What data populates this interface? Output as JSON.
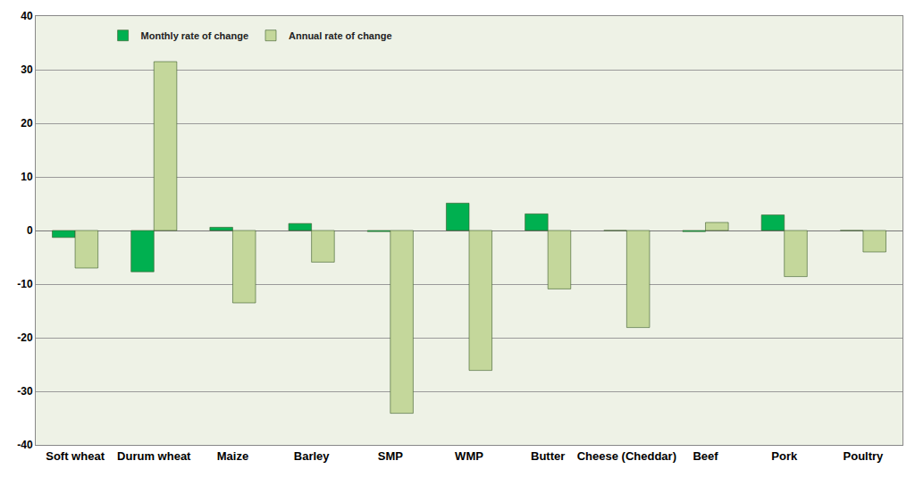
{
  "chart_data": {
    "type": "bar",
    "categories": [
      "Soft wheat",
      "Durum wheat",
      "Maize",
      "Barley",
      "SMP",
      "WMP",
      "Butter",
      "Cheese (Cheddar)",
      "Beef",
      "Pork",
      "Poultry"
    ],
    "series": [
      {
        "name": "Monthly rate of change",
        "color": "#00b050",
        "values": [
          -1.3,
          -7.7,
          0.6,
          1.3,
          -0.2,
          5.1,
          3.1,
          0,
          -0.2,
          2.9,
          0
        ]
      },
      {
        "name": "Annual rate of change",
        "color": "#c4d79b",
        "values": [
          -7.0,
          31.5,
          -13.5,
          -5.9,
          -34.1,
          -26.1,
          -10.9,
          -18.1,
          1.5,
          -8.6,
          -4.0
        ]
      }
    ],
    "ylim": [
      -40,
      40
    ],
    "yticks": [
      -40,
      -30,
      -20,
      -10,
      0,
      10,
      20,
      30,
      40
    ],
    "grid": true,
    "legend": "top-left"
  }
}
